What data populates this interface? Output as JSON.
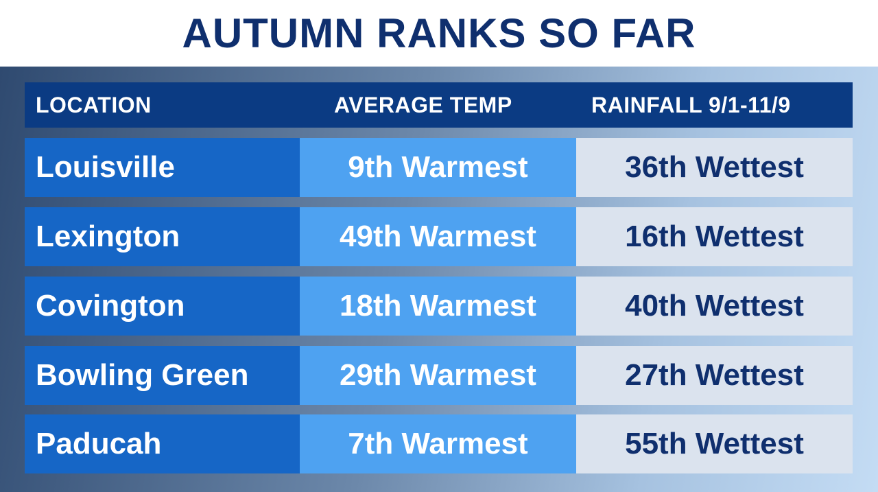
{
  "header": {
    "title": "AUTUMN RANKS SO FAR"
  },
  "table": {
    "columns": [
      "LOCATION",
      "AVERAGE TEMP",
      "RAINFALL 9/1-11/9"
    ],
    "rows": [
      [
        "Louisville",
        "9th Warmest",
        "36th Wettest"
      ],
      [
        "Lexington",
        "49th Warmest",
        "16th Wettest"
      ],
      [
        "Covington",
        "18th Warmest",
        "40th Wettest"
      ],
      [
        "Bowling Green",
        "29th Warmest",
        "27th Wettest"
      ],
      [
        "Paducah",
        "7th Warmest",
        "55th Wettest"
      ]
    ]
  }
}
